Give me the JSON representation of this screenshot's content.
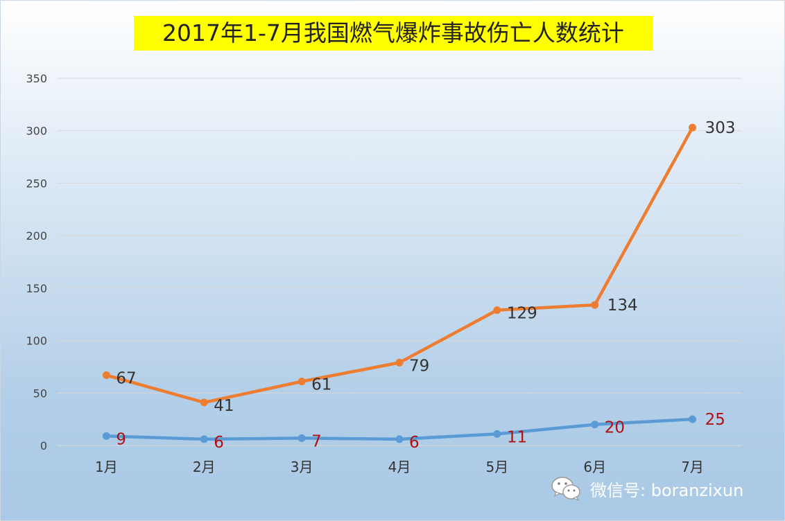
{
  "chart_data": {
    "type": "line",
    "title": "2017年1-7月我国燃气爆炸事故伤亡人数统计",
    "categories": [
      "1月",
      "2月",
      "3月",
      "4月",
      "5月",
      "6月",
      "7月"
    ],
    "series": [
      {
        "values": [
          67,
          41,
          61,
          79,
          129,
          134,
          303
        ],
        "color": "#ed7d31",
        "label_color": "#333333"
      },
      {
        "values": [
          9,
          6,
          7,
          6,
          11,
          20,
          25
        ],
        "color": "#5b9bd5",
        "label_color": "#b01010"
      }
    ],
    "ylim": [
      0,
      350
    ],
    "yticks": [
      0,
      50,
      100,
      150,
      200,
      250,
      300,
      350
    ],
    "grid": true,
    "legend": "none"
  },
  "watermark": {
    "icon": "wechat-icon",
    "text": "微信号: boranzixun"
  }
}
